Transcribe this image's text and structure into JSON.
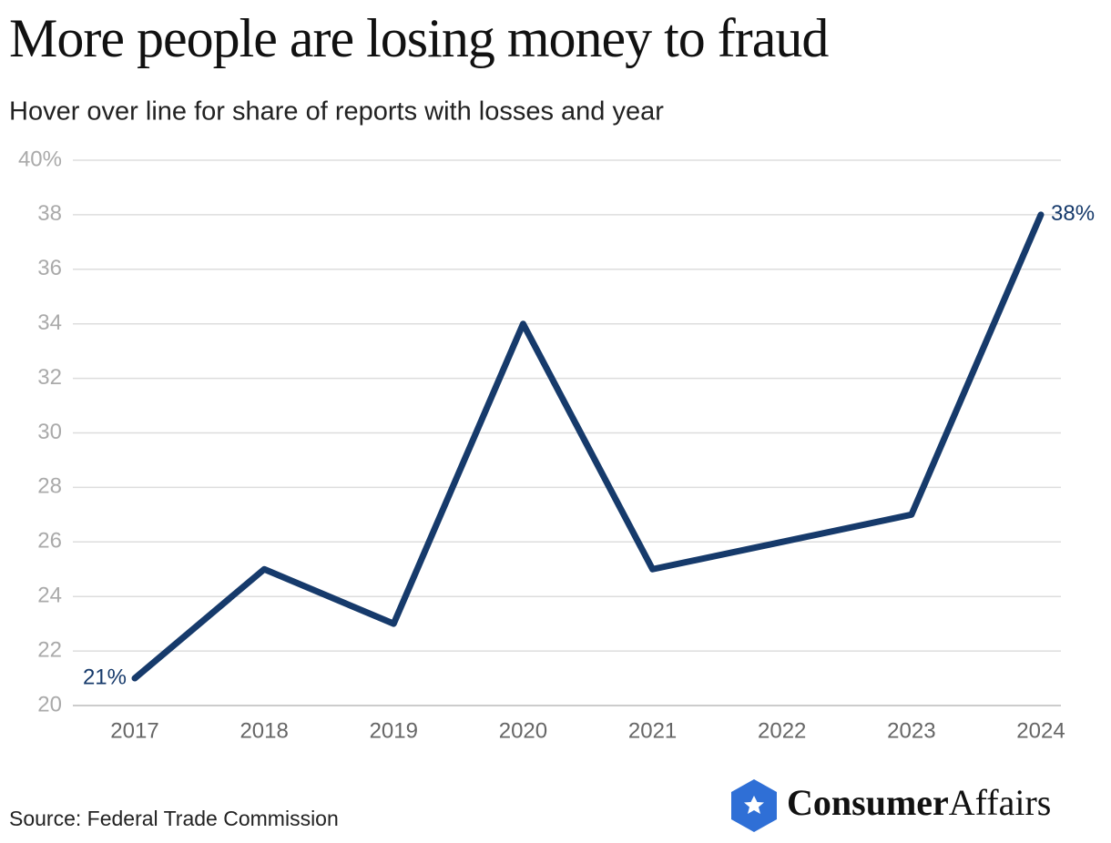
{
  "chart_data": {
    "type": "line",
    "title": "More people are losing money to fraud",
    "subtitle": "Hover over line for share of reports with losses and year",
    "categories": [
      "2017",
      "2018",
      "2019",
      "2020",
      "2021",
      "2022",
      "2023",
      "2024"
    ],
    "values": [
      21,
      25,
      23,
      34,
      25,
      26,
      27,
      38
    ],
    "value_labels": [
      "21%",
      null,
      null,
      null,
      null,
      null,
      null,
      "38%"
    ],
    "color": "#163a6b",
    "ylim": [
      20,
      40
    ],
    "yticks": [
      20,
      22,
      24,
      26,
      28,
      30,
      32,
      34,
      36,
      38,
      {
        "value": 40,
        "label": "40%"
      }
    ],
    "grid": true,
    "source": "Source: Federal Trade Commission"
  },
  "logo": {
    "bold": "Consumer",
    "regular": "Affairs"
  }
}
